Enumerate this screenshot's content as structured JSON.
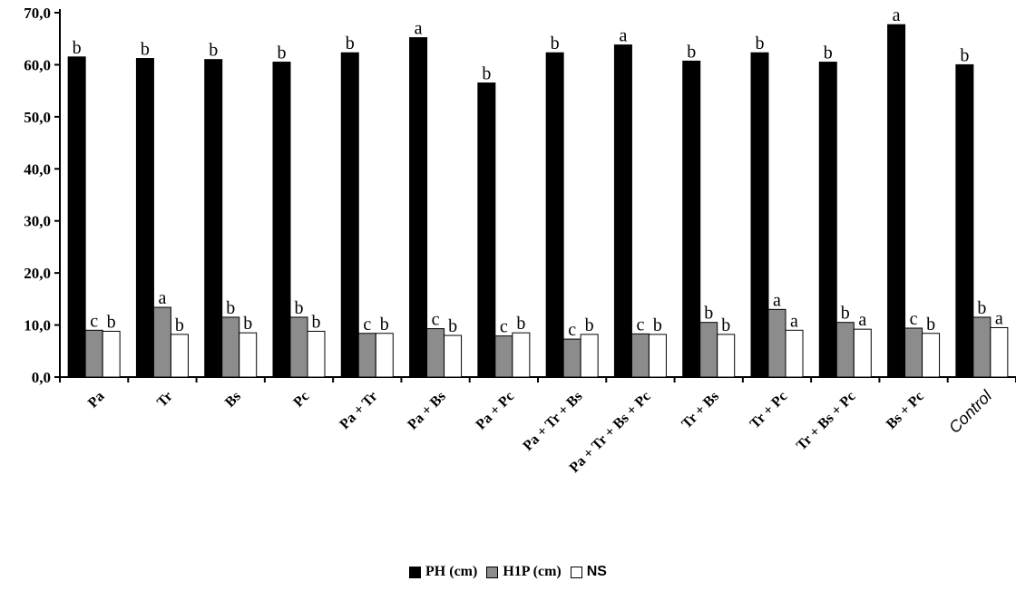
{
  "chart_data": {
    "type": "bar",
    "categories": [
      "Pa",
      "Tr",
      "Bs",
      "Pc",
      "Pa + Tr",
      "Pa + Bs",
      "Pa + Pc",
      "Pa + Tr + Bs",
      "Pa + Tr + Bs + Pc",
      "Tr + Bs",
      "Tr + Pc",
      "Tr + Bs + Pc",
      "Bs + Pc",
      "Control"
    ],
    "ylim": [
      0,
      70
    ],
    "yticks": [
      "0,0",
      "10,0",
      "20,0",
      "30,0",
      "40,0",
      "50,0",
      "60,0",
      "70,0"
    ],
    "grid": false,
    "legend_position": "bottom",
    "series": [
      {
        "name": "PH (cm)",
        "color": "#000000",
        "values": [
          61.5,
          61.2,
          61.0,
          60.5,
          62.3,
          65.2,
          56.5,
          62.3,
          63.8,
          60.7,
          62.3,
          60.5,
          67.7,
          60.0
        ],
        "labels": [
          "b",
          "b",
          "b",
          "b",
          "b",
          "a",
          "b",
          "b",
          "a",
          "b",
          "b",
          "b",
          "a",
          "b"
        ]
      },
      {
        "name": "H1P (cm)",
        "color": "#8c8c8c",
        "values": [
          9.0,
          13.4,
          11.5,
          11.5,
          8.4,
          9.3,
          7.9,
          7.3,
          8.3,
          10.5,
          13.0,
          10.5,
          9.4,
          11.5
        ],
        "labels": [
          "c",
          "a",
          "b",
          "b",
          "c",
          "c",
          "c",
          "c",
          "c",
          "b",
          "a",
          "b",
          "c",
          "b"
        ]
      },
      {
        "name": "NS",
        "color": "#ffffff",
        "values": [
          8.8,
          8.2,
          8.5,
          8.8,
          8.4,
          8.0,
          8.5,
          8.2,
          8.2,
          8.2,
          9.0,
          9.2,
          8.4,
          9.5
        ],
        "labels": [
          "b",
          "b",
          "b",
          "b",
          "b",
          "b",
          "b",
          "b",
          "b",
          "b",
          "a",
          "a",
          "b",
          "a"
        ]
      }
    ]
  }
}
